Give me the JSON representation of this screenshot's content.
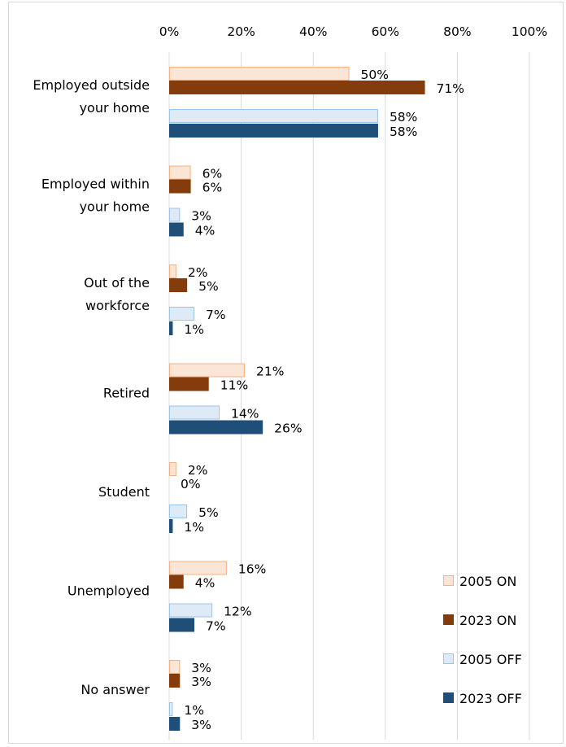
{
  "chart_data": {
    "type": "bar",
    "orientation": "horizontal",
    "xlim": [
      0,
      100
    ],
    "x_ticks": [
      0,
      20,
      40,
      60,
      80,
      100
    ],
    "x_tick_labels": [
      "0%",
      "20%",
      "40%",
      "60%",
      "80%",
      "100%"
    ],
    "x_axis_position": "top",
    "grid": true,
    "legend_position": "bottom-right",
    "categories": [
      [
        "Employed outside",
        "your home"
      ],
      [
        "Employed within",
        "your home"
      ],
      [
        "Out of the",
        "workforce"
      ],
      [
        "Retired"
      ],
      [
        "Student"
      ],
      [
        "Unemployed"
      ],
      [
        "No answer"
      ]
    ],
    "series": [
      {
        "name": "2005 ON",
        "color": "#fbe5d6",
        "stroke": "#f4b183",
        "values": [
          50,
          6,
          2,
          21,
          2,
          16,
          3
        ]
      },
      {
        "name": "2023 ON",
        "color": "#843c0c",
        "stroke": "#843c0c",
        "values": [
          71,
          6,
          5,
          11,
          0,
          4,
          3
        ]
      },
      {
        "name": "2005 OFF",
        "color": "#deebf7",
        "stroke": "#9dc3e6",
        "values": [
          58,
          3,
          7,
          14,
          5,
          12,
          1
        ]
      },
      {
        "name": "2023 OFF",
        "color": "#1f4e79",
        "stroke": "#1f4e79",
        "values": [
          58,
          4,
          1,
          26,
          1,
          7,
          3
        ]
      }
    ],
    "data_labels": [
      [
        "50%",
        "6%",
        "2%",
        "21%",
        "2%",
        "16%",
        "3%"
      ],
      [
        "71%",
        "6%",
        "5%",
        "11%",
        "0%",
        "4%",
        "3%"
      ],
      [
        "58%",
        "3%",
        "7%",
        "14%",
        "5%",
        "12%",
        "1%"
      ],
      [
        "58%",
        "4%",
        "1%",
        "26%",
        "1%",
        "7%",
        "3%"
      ]
    ]
  }
}
